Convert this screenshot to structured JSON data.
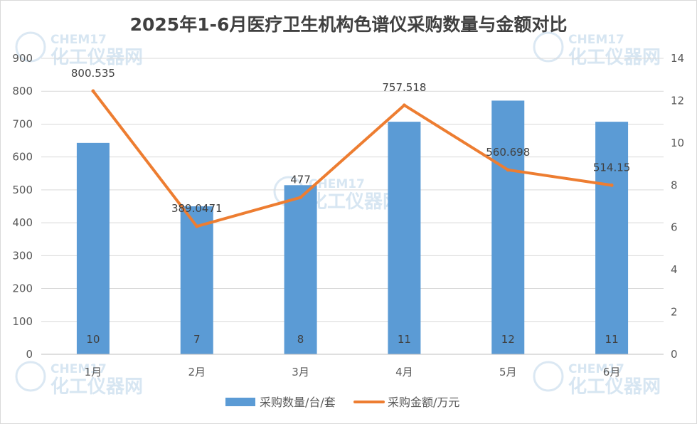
{
  "chart_data": {
    "type": "bar",
    "title": "2025年1-6月医疗卫生机构色谱仪采购数量与金额对比",
    "categories": [
      "1月",
      "2月",
      "3月",
      "4月",
      "5月",
      "6月"
    ],
    "series": [
      {
        "name": "采购数量/台/套",
        "type": "bar",
        "axis": "right",
        "values": [
          10,
          7,
          8,
          11,
          12,
          11
        ],
        "color": "#5b9bd5"
      },
      {
        "name": "采购金额/万元",
        "type": "line",
        "axis": "left",
        "values": [
          800.535,
          389.0471,
          477,
          757.518,
          560.698,
          514.15
        ],
        "color": "#ed7d31"
      }
    ],
    "y_left": {
      "ylim": [
        0,
        900
      ],
      "ticks": [
        "0",
        "100",
        "200",
        "300",
        "400",
        "500",
        "600",
        "700",
        "800",
        "900"
      ]
    },
    "y_right": {
      "ylim": [
        0,
        14
      ],
      "ticks": [
        "0",
        "2",
        "4",
        "6",
        "8",
        "10",
        "12",
        "14"
      ]
    },
    "grid": true,
    "legend_position": "bottom"
  },
  "watermark": {
    "brand": "CHEM17",
    "tagline": "化工仪器网"
  }
}
